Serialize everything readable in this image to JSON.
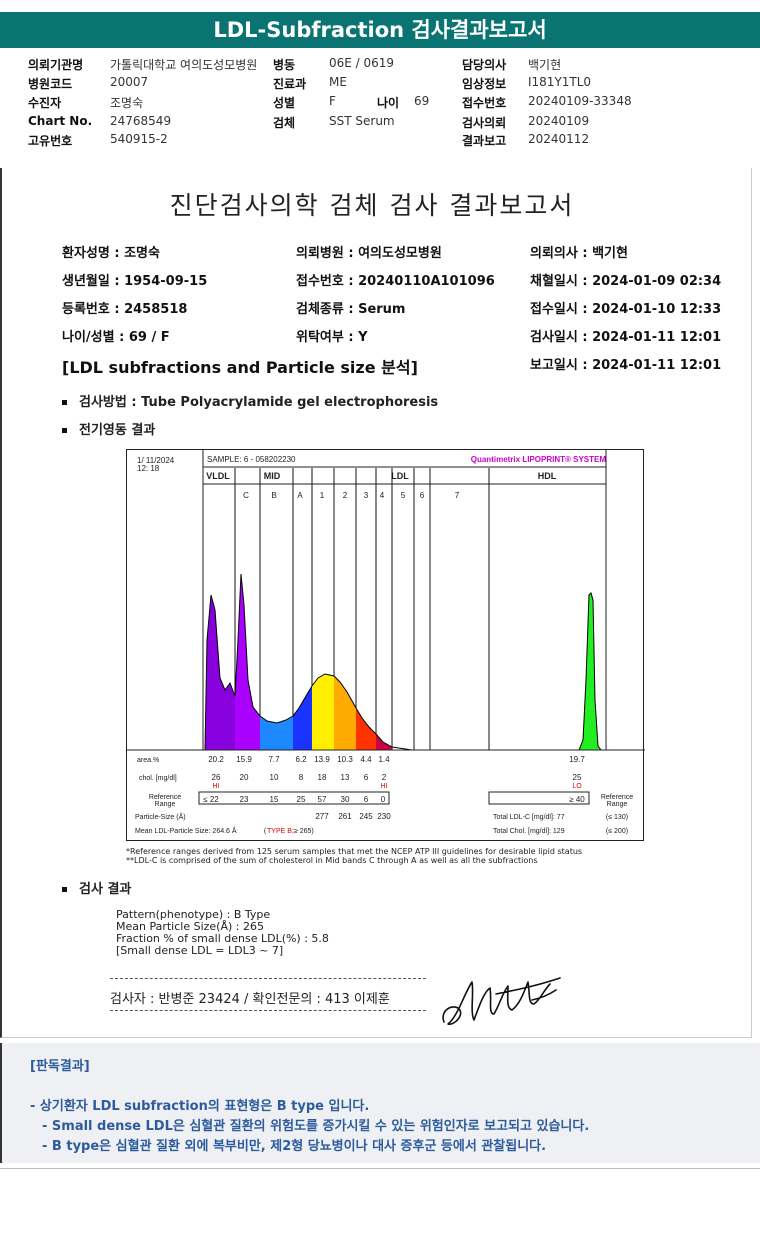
{
  "header": {
    "title": "LDL-Subfraction 검사결과보고서"
  },
  "info": {
    "institution_label": "의뢰기관명",
    "institution": "가톨릭대학교 여의도성모병원",
    "ward_label": "병동",
    "ward": "06E / 0619",
    "doctor_label": "담당의사",
    "doctor": "백기현",
    "hospital_code_label": "병원코드",
    "hospital_code": "20007",
    "dept_label": "진료과",
    "dept": "ME",
    "clinical_label": "임상정보",
    "clinical": "I181Y1TL0",
    "patient_label": "수진자",
    "patient": "조명숙",
    "sex_label": "성별",
    "sex": "F",
    "age_label": "나이",
    "age": "69",
    "receipt_label": "접수번호",
    "receipt": "20240109-33348",
    "chart_label": "Chart No.",
    "chart": "24768549",
    "specimen_label": "검체",
    "specimen": "SST Serum",
    "request_label": "검사의뢰",
    "request": "20240109",
    "unique_label": "고유번호",
    "unique": "540915-2",
    "report_label": "결과보고",
    "report": "20240112"
  },
  "report": {
    "title": "진단검사의학 검체 검사 결과보고서",
    "fields": {
      "name": "환자성명 : 조명숙",
      "hospital": "의뢰병원 : 여의도성모병원",
      "physician": "의뢰의사 : 백기현",
      "birth": "생년월일 : 1954-09-15",
      "receipt": "접수번호 : 20240110A101096",
      "collected": "채혈일시 : 2024-01-09 02:34",
      "regno": "등록번호 : 2458518",
      "specimen": "검체종류 : Serum",
      "received": "접수일시 : 2024-01-10 12:33",
      "age_sex": "나이/성별 : 69 / F",
      "outsourced": "위탁여부 : Y",
      "tested": "검사일시 : 2024-01-11 12:01",
      "reported": "보고일시 : 2024-01-11 12:01"
    },
    "section_title": "[LDL subfractions and Particle size 분석]",
    "method": "검사방법 : Tube Polyacrylamide gel electrophoresis",
    "electro": "전기영동 결과",
    "results_heading": "검사 결과",
    "notes": [
      "*Reference ranges derived from 125 serum samples that met the NCEP ATP III guidelines for desirable lipid status",
      "**LDL-C is comprised of the sum of cholesterol in Mid bands C through A as well as all the subfractions"
    ],
    "results": [
      "Pattern(phenotype) : B Type",
      "Mean Particle Size(Å) : 265",
      "Fraction % of small dense LDL(%) : 5.8",
      "[Small dense LDL = LDL3 ~ 7]"
    ],
    "signoff": "검사자 : 반병준  23424  /  확인전문의 : 413  이제훈"
  },
  "chart_data": {
    "type": "area",
    "date": "1/ 11/2024",
    "time": "12: 18",
    "sample": "SAMPLE:   6 - 058202230",
    "brand": "Quantimetrix LIPOPRINT® SYSTEM",
    "groups": [
      "VLDL",
      "MID",
      "LDL",
      "HDL"
    ],
    "bands": [
      "C",
      "B",
      "A",
      "1",
      "2",
      "3",
      "4",
      "5",
      "6",
      "7"
    ],
    "area_label": "area.%",
    "area_values": [
      "20.2",
      "15.9",
      "7.7",
      "6.2",
      "13.9",
      "10.3",
      "4.4",
      "1.4"
    ],
    "area_hdl": "19.7",
    "chol_label": "chol. [mg/dl]",
    "chol_values": [
      "26",
      "20",
      "10",
      "8",
      "18",
      "13",
      "6",
      "2"
    ],
    "chol_flags": [
      "HI",
      "",
      "",
      "",
      "",
      "",
      "",
      "HI"
    ],
    "chol_hdl": "25",
    "chol_hdl_flag": "LO",
    "ref_label": "Reference Range",
    "ref_values": [
      "≤ 22",
      "23",
      "15",
      "25",
      "57",
      "30",
      "6",
      "0"
    ],
    "ref_hdl": "≥ 40",
    "ref_right": "Reference Range",
    "psize_label": "Particle-Size (Å)",
    "psize_values": [
      "277",
      "261",
      "245",
      "230"
    ],
    "total_ldl": "Total LDL-C [mg/dl]:  77",
    "total_ldl_ref": "(≤ 130)",
    "mean_ldl": "Mean LDL-Particle Size:   264.6 Å",
    "mean_ldl_type": "TYPE B",
    "mean_ldl_ref": "≥ 265",
    "total_chol": "Total Chol. [mg/dl]:   129",
    "total_chol_ref": "(≤ 200)",
    "colors": {
      "vldl": "#8800dd",
      "midC": "#aa00ff",
      "midB": "#1e88ff",
      "midA": "#1a33ff",
      "ldl1": "#ffee00",
      "ldl2": "#ffaa00",
      "ldl3": "#ff3300",
      "ldl4": "#cc0044",
      "hdl": "#22ee22",
      "brand": "#cc00cc",
      "flag": "#e00000"
    }
  },
  "judgement": {
    "heading": "[판독결과]",
    "lines": [
      "- 상기환자 LDL subfraction의 표현형은 B type 입니다.",
      "-  Small dense LDL은 심혈관 질환의 위험도를 증가시킬 수 있는 위험인자로 보고되고 있습니다.",
      "-  B type은 심혈관 질환 외에 복부비만, 제2형 당뇨병이나 대사 증후군 등에서 관찰됩니다."
    ]
  }
}
